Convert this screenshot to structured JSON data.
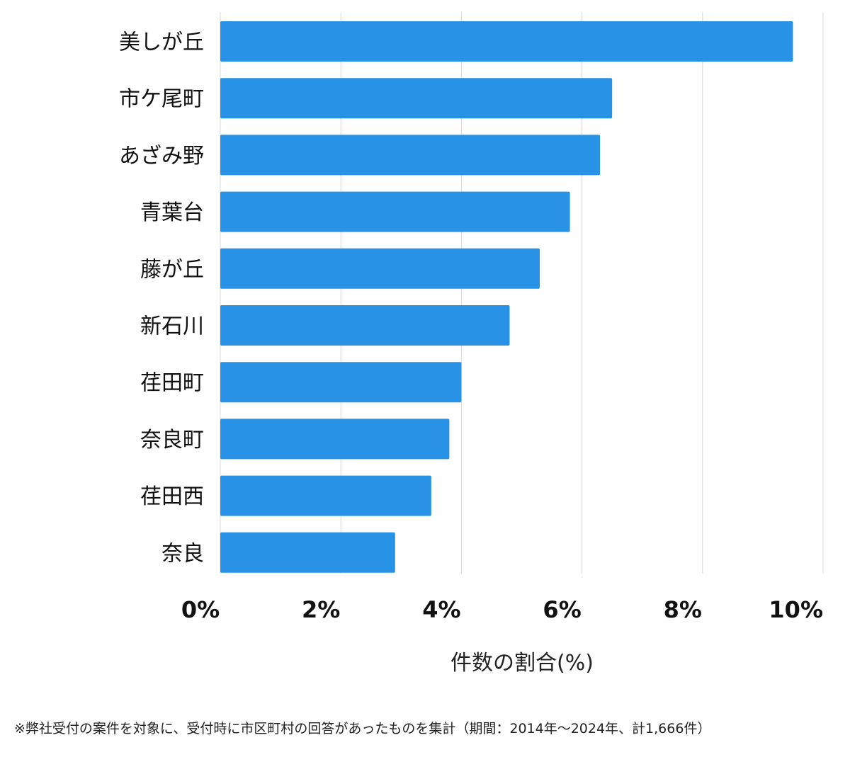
{
  "chart_data": {
    "type": "bar",
    "orientation": "horizontal",
    "categories": [
      "美しが丘",
      "市ケ尾町",
      "あざみ野",
      "青葉台",
      "藤が丘",
      "新石川",
      "荏田町",
      "奈良町",
      "荏田西",
      "奈良"
    ],
    "values": [
      9.5,
      6.5,
      6.3,
      5.8,
      5.3,
      4.8,
      4.0,
      3.8,
      3.5,
      2.9
    ],
    "xlabel": "件数の割合(%)",
    "xlim": [
      0,
      10
    ],
    "xticks": [
      "0%",
      "2%",
      "4%",
      "6%",
      "8%",
      "10%"
    ],
    "grid": true,
    "bar_color": "#2893e6",
    "grid_color": "#d9d9d9"
  },
  "footnote": "※弊社受付の案件を対象に、受付時に市区町村の回答があったものを集計（期間：2014年～2024年、計1,666件）"
}
